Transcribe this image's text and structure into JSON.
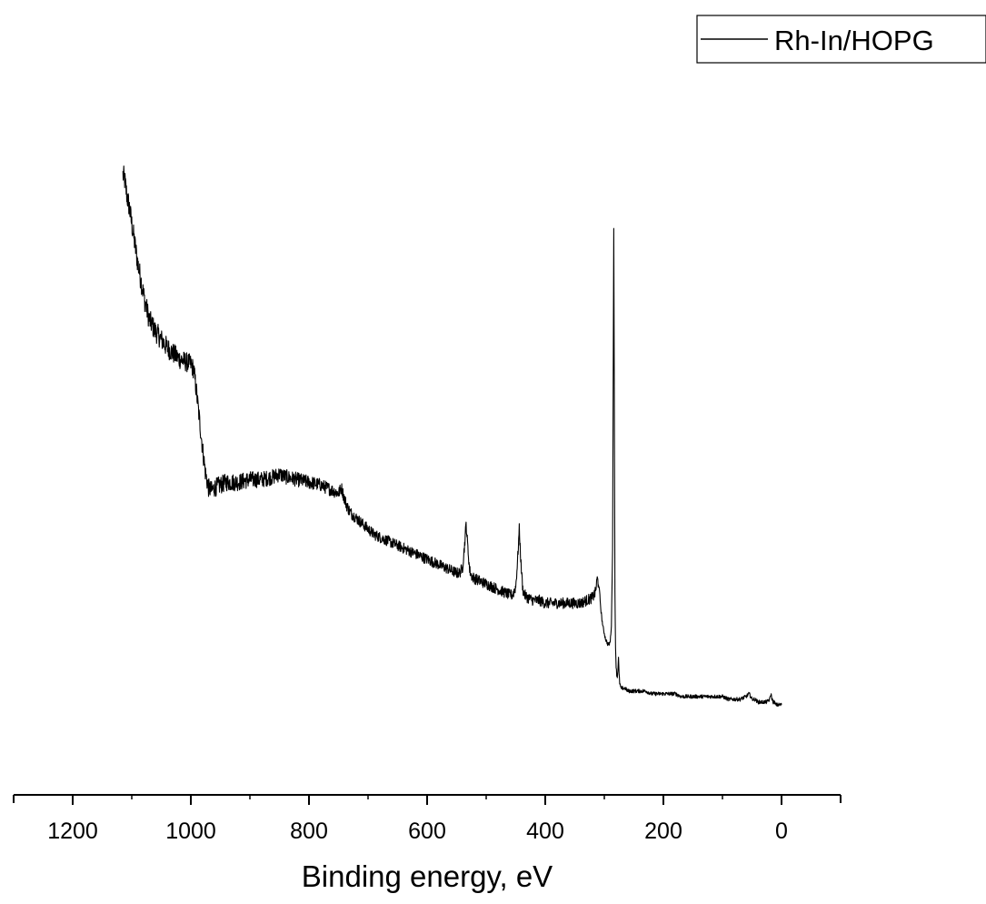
{
  "chart_data": {
    "type": "line",
    "title": "",
    "xlabel": "Binding energy, eV",
    "ylabel": "",
    "x_reversed": true,
    "xlim": [
      1300,
      -100
    ],
    "ylim": [
      0,
      100
    ],
    "x_ticks_major": [
      1200,
      1000,
      800,
      600,
      400,
      200,
      0
    ],
    "x_tick_labels": [
      "1200",
      "1000",
      "800",
      "600",
      "400",
      "200",
      "0"
    ],
    "x_ticks_minor": [
      1100,
      900,
      700,
      500,
      300,
      100
    ],
    "y_axis_shown": false,
    "grid": false,
    "legend_position": "top-right",
    "series": [
      {
        "name": "Rh-In/HOPG",
        "color": "#000000",
        "x": [
          1115,
          1112,
          1108,
          1104,
          1100,
          1095,
          1090,
          1084,
          1078,
          1070,
          1060,
          1050,
          1040,
          1030,
          1020,
          1010,
          1000,
          995,
          990,
          985,
          980,
          975,
          970,
          965,
          960,
          950,
          940,
          920,
          900,
          880,
          860,
          850,
          840,
          820,
          800,
          780,
          760,
          750,
          745,
          740,
          735,
          730,
          720,
          710,
          700,
          690,
          680,
          670,
          660,
          650,
          640,
          630,
          620,
          610,
          600,
          590,
          580,
          570,
          560,
          550,
          545,
          540,
          537,
          534,
          531,
          528,
          525,
          520,
          510,
          500,
          490,
          480,
          470,
          460,
          455,
          450,
          447,
          444,
          441,
          438,
          435,
          430,
          420,
          410,
          400,
          390,
          380,
          370,
          360,
          350,
          340,
          330,
          320,
          315,
          312,
          310,
          308,
          306,
          304,
          302,
          300,
          298,
          296,
          294,
          292,
          290,
          288,
          286,
          285,
          284,
          283,
          282,
          281,
          280,
          279,
          278,
          277,
          276,
          275,
          274,
          273,
          272,
          270,
          265,
          260,
          255,
          250,
          240,
          230,
          220,
          210,
          200,
          190,
          180,
          170,
          160,
          150,
          140,
          130,
          120,
          110,
          100,
          90,
          80,
          70,
          60,
          55,
          52,
          50,
          47,
          45,
          40,
          35,
          30,
          25,
          20,
          18,
          16,
          14,
          12,
          10,
          5,
          0
        ],
        "y": [
          98.0,
          97.0,
          94.0,
          92.0,
          89.0,
          85.5,
          82.0,
          78.5,
          75.0,
          71.5,
          69.5,
          68.0,
          66.5,
          65.5,
          64.5,
          64.0,
          63.5,
          62.5,
          58.0,
          53.0,
          48.0,
          43.5,
          41.0,
          40.5,
          41.0,
          41.5,
          42.0,
          42.0,
          42.5,
          42.5,
          43.0,
          43.5,
          43.0,
          42.5,
          42.0,
          41.5,
          40.5,
          40.0,
          41.0,
          39.0,
          37.5,
          36.5,
          35.5,
          34.5,
          33.5,
          32.5,
          32.0,
          31.5,
          31.0,
          30.5,
          30.0,
          29.5,
          29.0,
          28.5,
          28.0,
          27.5,
          27.0,
          26.5,
          26.0,
          25.5,
          25.5,
          26.5,
          30.0,
          34.5,
          30.0,
          26.0,
          25.0,
          24.5,
          24.0,
          23.5,
          23.0,
          22.5,
          22.0,
          21.5,
          21.5,
          23.0,
          27.5,
          33.5,
          27.0,
          22.5,
          21.5,
          21.0,
          20.5,
          20.5,
          20.0,
          20.0,
          20.0,
          20.0,
          20.0,
          20.0,
          20.0,
          20.5,
          21.0,
          22.0,
          24.5,
          23.5,
          22.0,
          19.0,
          17.0,
          15.5,
          14.5,
          13.5,
          13.0,
          12.5,
          12.5,
          13.0,
          16.0,
          30.0,
          60.0,
          88.5,
          55.0,
          22.0,
          12.0,
          8.5,
          7.0,
          6.5,
          8.0,
          10.0,
          7.0,
          5.5,
          5.0,
          4.5,
          4.5,
          4.5,
          4.0,
          4.0,
          4.0,
          4.0,
          4.0,
          3.5,
          3.5,
          3.5,
          3.5,
          3.5,
          3.0,
          3.0,
          3.0,
          3.0,
          3.0,
          3.0,
          3.0,
          3.0,
          2.5,
          2.5,
          2.5,
          3.0,
          3.5,
          3.0,
          2.5,
          2.5,
          2.5,
          2.0,
          2.0,
          2.0,
          2.0,
          2.5,
          3.5,
          2.5,
          2.0,
          2.0,
          1.5,
          1.5,
          1.5
        ]
      }
    ]
  }
}
